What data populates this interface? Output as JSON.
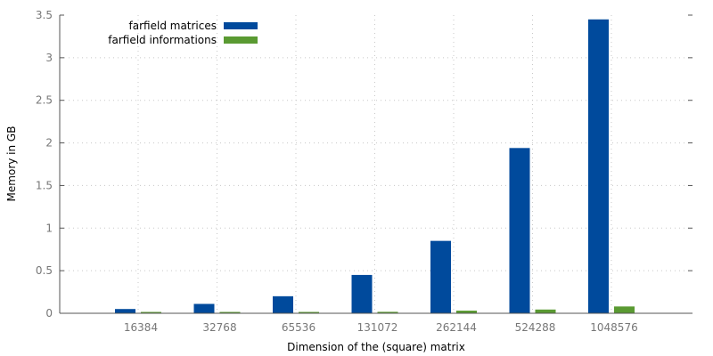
{
  "chart_data": {
    "type": "bar",
    "title": "",
    "xlabel": "Dimension of the (square) matrix",
    "ylabel": "Memory in GB",
    "ylim": [
      0,
      3.5
    ],
    "yticks": [
      "0",
      "0.5",
      "1",
      "1.5",
      "2",
      "2.5",
      "3",
      "3.5"
    ],
    "grid": true,
    "legend_position": "top-left",
    "categories": [
      "16384",
      "32768",
      "65536",
      "131072",
      "262144",
      "524288",
      "1048576"
    ],
    "series": [
      {
        "name": "farfield matrices",
        "color": "#004a9c",
        "values": [
          0.05,
          0.11,
          0.2,
          0.45,
          0.85,
          1.94,
          3.45
        ]
      },
      {
        "name": "farfield informations",
        "color": "#5a9a32",
        "values": [
          0.004,
          0.006,
          0.009,
          0.017,
          0.031,
          0.044,
          0.08
        ]
      }
    ]
  }
}
